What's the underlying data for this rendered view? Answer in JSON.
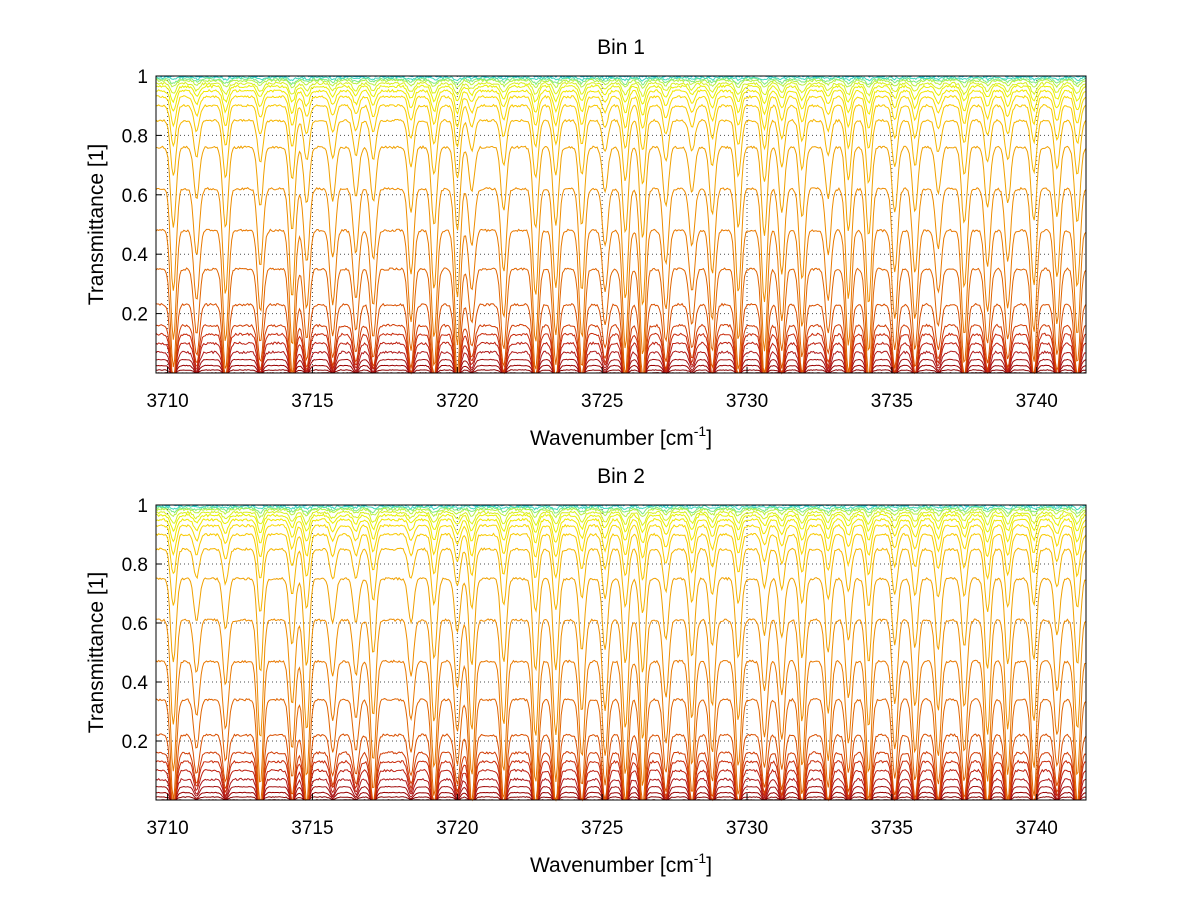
{
  "chart_data": [
    {
      "type": "line",
      "title": "Bin 1",
      "xlabel": "Wavenumber [cm",
      "xlabel_sup": "-1",
      "xlabel_end": "]",
      "ylabel": "Transmittance [1]",
      "xlim": [
        3709.6,
        3741.7
      ],
      "ylim": [
        0.0,
        1.0
      ],
      "xticks": [
        "3710",
        "3715",
        "3720",
        "3725",
        "3730",
        "3735",
        "3740"
      ],
      "yticks": [
        "0.2",
        "0.4",
        "0.6",
        "0.8",
        "1"
      ],
      "grid": true,
      "series_baselines": [
        0.0,
        0.01,
        0.025,
        0.045,
        0.07,
        0.1,
        0.13,
        0.16,
        0.23,
        0.35,
        0.48,
        0.62,
        0.76,
        0.85,
        0.9,
        0.93,
        0.95,
        0.965,
        0.975,
        0.985,
        0.99,
        0.995,
        1.0
      ],
      "series_colors": [
        "#800000",
        "#8b0000",
        "#990000",
        "#a31010",
        "#b01a1a",
        "#bd1f10",
        "#c82a0a",
        "#d03c05",
        "#d95000",
        "#e06400",
        "#e87800",
        "#ee8c00",
        "#f0a000",
        "#f5b400",
        "#f8c800",
        "#f8d800",
        "#f0e600",
        "#e8f000",
        "#d8f020",
        "#b8f040",
        "#80e880",
        "#40d8c0",
        "#20c8e0"
      ],
      "dip_positions": [
        3710.2,
        3711.0,
        3712.0,
        3713.2,
        3714.3,
        3714.8,
        3715.7,
        3716.5,
        3717.1,
        3718.4,
        3719.2,
        3720.0,
        3720.5,
        3721.6,
        3722.7,
        3723.4,
        3724.3,
        3725.1,
        3725.8,
        3726.4,
        3727.2,
        3728.1,
        3728.8,
        3729.7,
        3730.6,
        3731.2,
        3731.9,
        3732.8,
        3733.5,
        3734.2,
        3735.1,
        3735.8,
        3736.6,
        3737.5,
        3738.3,
        3739.0,
        3739.9,
        3740.7,
        3741.4
      ]
    },
    {
      "type": "line",
      "title": "Bin 2",
      "xlabel": "Wavenumber [cm",
      "xlabel_sup": "-1",
      "xlabel_end": "]",
      "ylabel": "Transmittance [1]",
      "xlim": [
        3709.6,
        3741.7
      ],
      "ylim": [
        0.0,
        1.0
      ],
      "xticks": [
        "3710",
        "3715",
        "3720",
        "3725",
        "3730",
        "3735",
        "3740"
      ],
      "yticks": [
        "0.2",
        "0.4",
        "0.6",
        "0.8",
        "1"
      ],
      "grid": true,
      "series_baselines": [
        0.0,
        0.01,
        0.025,
        0.045,
        0.07,
        0.1,
        0.13,
        0.16,
        0.22,
        0.34,
        0.47,
        0.61,
        0.75,
        0.85,
        0.9,
        0.93,
        0.95,
        0.965,
        0.975,
        0.985,
        0.99,
        0.995,
        1.0
      ],
      "series_colors": [
        "#800000",
        "#8b0000",
        "#990000",
        "#a31010",
        "#b01a1a",
        "#bd1f10",
        "#c82a0a",
        "#d03c05",
        "#d95000",
        "#e06400",
        "#e87800",
        "#ee8c00",
        "#f0a000",
        "#f5b400",
        "#f8c800",
        "#f8d800",
        "#f0e600",
        "#e8f000",
        "#d8f020",
        "#b8f040",
        "#80e880",
        "#40d8c0",
        "#20c8e0"
      ],
      "dip_positions": [
        3710.2,
        3711.0,
        3712.0,
        3713.2,
        3714.3,
        3714.8,
        3715.7,
        3716.5,
        3717.1,
        3718.4,
        3719.2,
        3720.0,
        3720.5,
        3721.6,
        3722.7,
        3723.4,
        3724.3,
        3725.1,
        3725.8,
        3726.4,
        3727.2,
        3728.1,
        3728.8,
        3729.7,
        3730.6,
        3731.2,
        3731.9,
        3732.8,
        3733.5,
        3734.2,
        3735.1,
        3735.8,
        3736.6,
        3737.5,
        3738.3,
        3739.0,
        3739.9,
        3740.7,
        3741.4
      ]
    }
  ]
}
